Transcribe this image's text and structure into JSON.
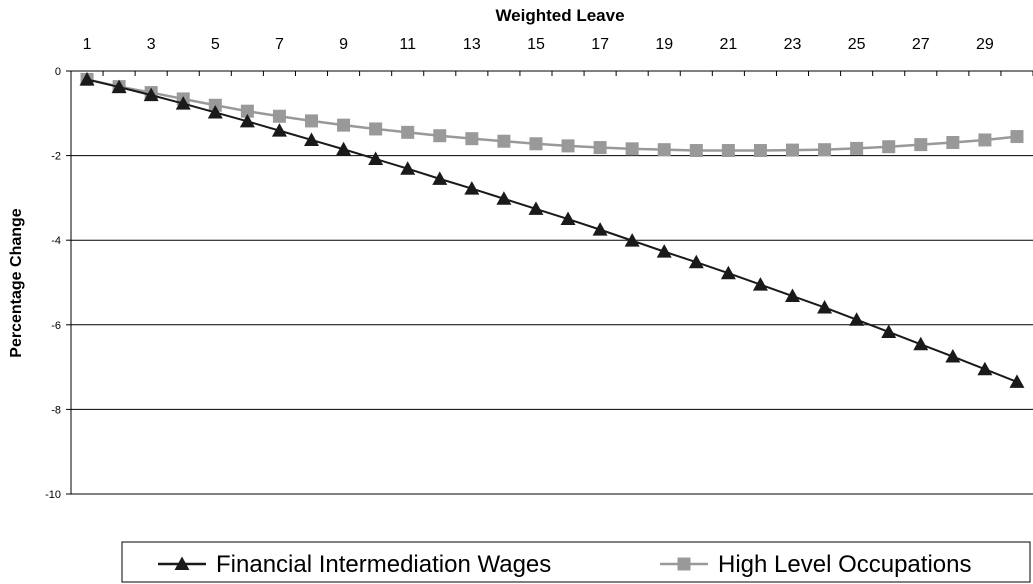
{
  "chart_data": {
    "type": "line",
    "title": "",
    "xlabel": "Weighted Leave",
    "ylabel": "Percentage Change",
    "x_axis_position": "top",
    "xlim": [
      1,
      30
    ],
    "ylim": [
      -10,
      0
    ],
    "yticks": [
      "0",
      "-2",
      "-4",
      "-6",
      "-8",
      "-10"
    ],
    "xtick_labels": [
      "1",
      "3",
      "5",
      "7",
      "9",
      "11",
      "13",
      "15",
      "17",
      "19",
      "21",
      "23",
      "25",
      "27",
      "29"
    ],
    "grid": "horizontal",
    "legend_position": "bottom",
    "x": [
      1,
      2,
      3,
      4,
      5,
      6,
      7,
      8,
      9,
      10,
      11,
      12,
      13,
      14,
      15,
      16,
      17,
      18,
      19,
      20,
      21,
      22,
      23,
      24,
      25,
      26,
      27,
      28,
      29,
      30
    ],
    "series": [
      {
        "name": "Financial Intermediation Wages",
        "marker": "triangle",
        "color": "#1a1a1a",
        "values": [
          -0.2,
          -0.38,
          -0.57,
          -0.77,
          -0.98,
          -1.19,
          -1.41,
          -1.63,
          -1.85,
          -2.08,
          -2.31,
          -2.55,
          -2.78,
          -3.02,
          -3.26,
          -3.5,
          -3.75,
          -4.01,
          -4.27,
          -4.52,
          -4.78,
          -5.05,
          -5.32,
          -5.59,
          -5.88,
          -6.17,
          -6.46,
          -6.75,
          -7.05,
          -7.35
        ]
      },
      {
        "name": "High Level Occupations",
        "marker": "square",
        "color": "#999999",
        "values": [
          -0.2,
          -0.37,
          -0.51,
          -0.66,
          -0.81,
          -0.95,
          -1.07,
          -1.18,
          -1.28,
          -1.37,
          -1.45,
          -1.53,
          -1.6,
          -1.66,
          -1.72,
          -1.77,
          -1.81,
          -1.84,
          -1.86,
          -1.88,
          -1.88,
          -1.88,
          -1.87,
          -1.86,
          -1.83,
          -1.79,
          -1.74,
          -1.69,
          -1.63,
          -1.55
        ]
      }
    ]
  }
}
